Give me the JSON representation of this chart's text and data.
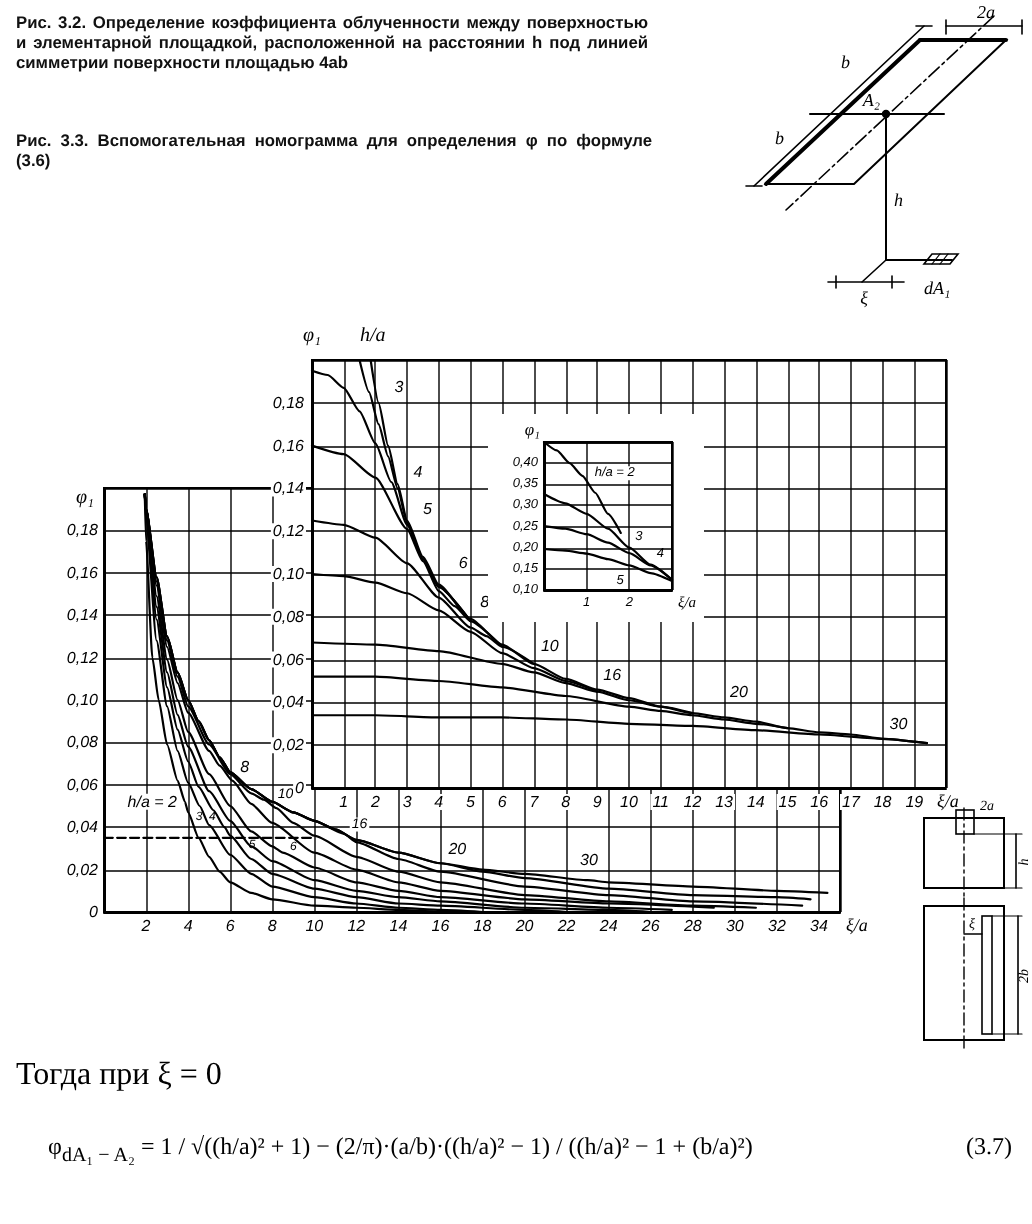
{
  "chart_data": [
    {
      "type": "other",
      "title": "Рис. 3.2. Определение коэффициента облученности между поверхностью и элементарной площадкой, расположенной на расстоянии h под линией симметрии поверхности площадью 4ab",
      "annotations": [
        "2a",
        "b",
        "b",
        "A₂",
        "h",
        "ξ",
        "dA₁"
      ]
    },
    {
      "type": "line",
      "title": "Рис. 3.3. Вспомогательная номограмма для определения φ по формуле (3.6)",
      "xlabel": "ξ/a",
      "ylabel": "φ₁",
      "xlim": [
        0,
        20
      ],
      "ylim": [
        0,
        0.2
      ],
      "xticks": [
        1,
        2,
        3,
        4,
        5,
        6,
        7,
        8,
        9,
        10,
        11,
        12,
        13,
        14,
        15,
        16,
        17,
        18,
        19
      ],
      "yticks": [
        0,
        {
          "value": 0.02,
          "label": "0,02"
        },
        {
          "value": 0.04,
          "label": "0,04"
        },
        {
          "value": 0.06,
          "label": "0,06"
        },
        {
          "value": 0.08,
          "label": "0,08"
        },
        {
          "value": 0.1,
          "label": "0,10"
        },
        {
          "value": 0.12,
          "label": "0,12"
        },
        {
          "value": 0.14,
          "label": "0,14"
        },
        {
          "value": 0.16,
          "label": "0,16"
        },
        {
          "value": 0.18,
          "label": "0,18"
        }
      ],
      "grid": true,
      "marker": "none",
      "series": [
        {
          "color": "#000000",
          "x": [
            1.85,
            2.1,
            2.4,
            2.7,
            3,
            3.5,
            4,
            5,
            6,
            7,
            8,
            9,
            10,
            11,
            12,
            13,
            14,
            15,
            16,
            17,
            18,
            19.4
          ],
          "values": [
            0.2,
            0.18,
            0.16,
            0.142,
            0.125,
            0.108,
            0.095,
            0.079,
            0.067,
            0.058,
            0.051,
            0.046,
            0.042,
            0.038,
            0.035,
            0.033,
            0.031,
            0.028,
            0.026,
            0.025,
            0.023,
            0.021
          ]
        },
        {
          "color": "#000000",
          "x": [
            1.5,
            1.8,
            2.1,
            2.4,
            2.7,
            3,
            3.5,
            4,
            5
          ],
          "values": [
            0.2,
            0.185,
            0.17,
            0.155,
            0.14,
            0.124,
            0.107,
            0.094,
            0.078
          ]
        },
        {
          "color": "#000000",
          "x": [
            0,
            0.5,
            1,
            1.5,
            2,
            2.5,
            3,
            3.5,
            4,
            5
          ],
          "values": [
            0.195,
            0.193,
            0.187,
            0.176,
            0.161,
            0.143,
            0.123,
            0.107,
            0.094,
            0.078
          ]
        },
        {
          "color": "#000000",
          "x": [
            0,
            1,
            2,
            3,
            3.5,
            4,
            4.5,
            5,
            6
          ],
          "values": [
            0.16,
            0.156,
            0.145,
            0.121,
            0.106,
            0.092,
            0.085,
            0.078,
            0.066
          ]
        },
        {
          "color": "#000000",
          "x": [
            0,
            1,
            2,
            3,
            4,
            5,
            5.5,
            6,
            7
          ],
          "values": [
            0.125,
            0.123,
            0.117,
            0.105,
            0.089,
            0.075,
            0.071,
            0.066,
            0.058
          ]
        },
        {
          "color": "#000000",
          "x": [
            0,
            1,
            2,
            3,
            4,
            5,
            6,
            7,
            8,
            9
          ],
          "values": [
            0.1,
            0.099,
            0.096,
            0.091,
            0.083,
            0.073,
            0.063,
            0.056,
            0.05,
            0.045
          ]
        },
        {
          "color": "#000000",
          "x": [
            0,
            2,
            4,
            6,
            7,
            8,
            9,
            10,
            11,
            12
          ],
          "values": [
            0.068,
            0.067,
            0.064,
            0.058,
            0.054,
            0.049,
            0.045,
            0.041,
            0.038,
            0.035
          ]
        },
        {
          "color": "#000000",
          "x": [
            0,
            2,
            4,
            6,
            8,
            10,
            11,
            12,
            13,
            14,
            15
          ],
          "values": [
            0.052,
            0.052,
            0.05,
            0.047,
            0.043,
            0.038,
            0.036,
            0.034,
            0.032,
            0.03,
            0.028
          ]
        },
        {
          "color": "#000000",
          "x": [
            0,
            2,
            4,
            6,
            8,
            10,
            12,
            14,
            16,
            18,
            19.4
          ],
          "values": [
            0.034,
            0.034,
            0.033,
            0.033,
            0.032,
            0.03,
            0.029,
            0.027,
            0.025,
            0.023,
            0.021
          ]
        }
      ],
      "annotations": [
        "h/a",
        {
          "text": "3",
          "x": 2.1,
          "y": 0.18
        },
        {
          "text": "4",
          "x": 2.7,
          "y": 0.14
        },
        {
          "text": "5",
          "x": 3,
          "y": 0.123
        },
        {
          "text": "6",
          "x": 4,
          "y": 0.092
        },
        {
          "text": "8",
          "x": 5.5,
          "y": 0.071
        },
        {
          "text": "10",
          "x": 7,
          "y": 0.056
        },
        {
          "text": "16",
          "x": 9,
          "y": 0.045
        },
        {
          "text": "20",
          "x": 13,
          "y": 0.032
        },
        {
          "text": "30",
          "x": 18,
          "y": 0.023
        }
      ]
    },
    {
      "type": "line",
      "xlabel": "ξ/a",
      "ylabel": "φ₁",
      "xlim": [
        0,
        3
      ],
      "ylim": [
        0.1,
        0.45
      ],
      "xticks": [
        1,
        2
      ],
      "yticks": [
        {
          "value": 0.1,
          "label": "0,10"
        },
        {
          "value": 0.15,
          "label": "0,15"
        },
        {
          "value": 0.2,
          "label": "0,20"
        },
        {
          "value": 0.25,
          "label": "0,25"
        },
        {
          "value": 0.3,
          "label": "0,30"
        },
        {
          "value": 0.35,
          "label": "0,35"
        },
        {
          "value": 0.4,
          "label": "0,40"
        }
      ],
      "grid": true,
      "marker": "none",
      "series": [
        {
          "color": "#000000",
          "x": [
            0,
            0.3,
            0.6,
            0.9,
            1.2,
            1.5,
            1.8
          ],
          "values": [
            0.45,
            0.43,
            0.4,
            0.37,
            0.33,
            0.28,
            0.235
          ]
        },
        {
          "color": "#000000",
          "x": [
            0,
            0.5,
            1,
            1.5,
            2,
            2.5,
            3
          ],
          "values": [
            0.327,
            0.305,
            0.28,
            0.245,
            0.2,
            0.16,
            0.124
          ]
        },
        {
          "color": "#000000",
          "x": [
            0,
            0.5,
            1,
            1.5,
            2,
            2.5,
            3
          ],
          "values": [
            0.251,
            0.245,
            0.232,
            0.212,
            0.187,
            0.158,
            0.124
          ]
        },
        {
          "color": "#000000",
          "x": [
            0,
            0.5,
            1,
            1.5,
            2,
            2.5,
            3
          ],
          "values": [
            0.197,
            0.193,
            0.186,
            0.173,
            0.158,
            0.14,
            0.121
          ]
        }
      ],
      "annotations": [
        {
          "text": "h/a = 2",
          "x": 1,
          "y": 0.355
        },
        {
          "text": "3",
          "x": 2,
          "y": 0.2
        },
        {
          "text": "4",
          "x": 2.5,
          "y": 0.158
        },
        {
          "text": "5",
          "x": 2.2,
          "y": 0.152
        }
      ]
    },
    {
      "type": "line",
      "xlabel": "ξ/a",
      "ylabel": "φ₁",
      "xlim": [
        0,
        35
      ],
      "ylim": [
        0,
        0.2
      ],
      "xticks": [
        2,
        4,
        6,
        8,
        10,
        12,
        14,
        16,
        18,
        20,
        22,
        24,
        26,
        28,
        30,
        32,
        34
      ],
      "yticks": [
        0,
        {
          "value": 0.02,
          "label": "0,02"
        },
        {
          "value": 0.04,
          "label": "0,04"
        },
        {
          "value": 0.06,
          "label": "0,06"
        },
        {
          "value": 0.08,
          "label": "0,08"
        },
        {
          "value": 0.1,
          "label": "0,10"
        },
        {
          "value": 0.12,
          "label": "0,12"
        },
        {
          "value": 0.14,
          "label": "0,14"
        },
        {
          "value": 0.16,
          "label": "0,16"
        },
        {
          "value": 0.18,
          "label": "0,18"
        }
      ],
      "grid": true,
      "marker": "none",
      "series": [
        {
          "color": "#000000",
          "x": [
            1.94,
            2,
            2.3,
            2.6,
            3,
            3.5,
            3.85,
            4,
            4.5,
            5,
            5.5,
            6,
            7,
            8,
            10,
            12,
            14,
            16
          ],
          "values": [
            0.197,
            0.175,
            0.12,
            0.1,
            0.079,
            0.062,
            0.052,
            0.047,
            0.035,
            0.026,
            0.019,
            0.014,
            0.009,
            0.006,
            0.003,
            0.002,
            0.001,
            0
          ]
        },
        {
          "color": "#000000",
          "x": [
            1.94,
            2,
            2.5,
            3,
            3.5,
            4,
            4.55,
            5,
            6,
            7,
            8,
            10,
            12,
            14,
            16,
            18
          ],
          "values": [
            0.197,
            0.185,
            0.128,
            0.097,
            0.076,
            0.061,
            0.05,
            0.041,
            0.027,
            0.018,
            0.012,
            0.007,
            0.004,
            0.002,
            0.001,
            0
          ]
        },
        {
          "color": "#000000",
          "x": [
            1.94,
            2,
            2.5,
            3,
            3.5,
            4,
            4.5,
            5.2,
            5.73,
            6,
            7,
            8,
            10,
            12,
            14,
            16,
            20,
            22
          ],
          "values": [
            0.197,
            0.188,
            0.138,
            0.106,
            0.086,
            0.071,
            0.059,
            0.048,
            0.04,
            0.036,
            0.025,
            0.018,
            0.011,
            0.007,
            0.004,
            0.003,
            0.001,
            0
          ]
        },
        {
          "color": "#000000",
          "x": [
            1.94,
            2,
            2.5,
            3,
            3.5,
            4,
            5,
            6,
            7,
            8,
            10,
            12,
            14,
            16,
            20,
            24,
            26
          ],
          "values": [
            0.197,
            0.189,
            0.144,
            0.113,
            0.093,
            0.078,
            0.057,
            0.043,
            0.031,
            0.024,
            0.015,
            0.01,
            0.007,
            0.005,
            0.002,
            0.001,
            0
          ]
        },
        {
          "color": "#000000",
          "x": [
            1.94,
            2,
            2.5,
            3,
            3.5,
            4,
            5,
            6,
            7,
            8,
            8.5,
            10,
            12,
            14,
            16,
            20,
            24,
            27
          ],
          "values": [
            0.197,
            0.19,
            0.149,
            0.119,
            0.1,
            0.085,
            0.065,
            0.05,
            0.038,
            0.031,
            0.028,
            0.021,
            0.014,
            0.01,
            0.007,
            0.004,
            0.002,
            0.001
          ]
        },
        {
          "color": "#000000",
          "x": [
            1.94,
            2,
            2.5,
            3,
            3.5,
            4,
            5,
            5.5,
            6.1,
            7,
            8,
            10,
            12,
            14,
            16,
            20,
            24,
            29
          ],
          "values": [
            0.197,
            0.19,
            0.154,
            0.125,
            0.108,
            0.094,
            0.076,
            0.069,
            0.062,
            0.051,
            0.042,
            0.028,
            0.02,
            0.014,
            0.01,
            0.006,
            0.004,
            0.002
          ]
        },
        {
          "color": "#000000",
          "x": [
            1.94,
            2,
            2.5,
            3,
            3.5,
            4,
            5,
            6,
            7,
            7.6,
            8.2,
            9,
            10,
            12,
            14,
            16,
            20,
            24,
            28,
            31
          ],
          "values": [
            0.197,
            0.19,
            0.156,
            0.128,
            0.111,
            0.097,
            0.079,
            0.065,
            0.056,
            0.053,
            0.049,
            0.042,
            0.036,
            0.026,
            0.019,
            0.014,
            0.008,
            0.005,
            0.003,
            0.002
          ]
        },
        {
          "color": "#000000",
          "x": [
            1.94,
            2,
            2.5,
            3,
            3.5,
            4,
            4.5,
            5,
            5.5,
            6,
            7,
            8,
            9,
            10,
            11.4,
            12,
            14,
            16,
            20,
            24,
            28,
            33.2
          ],
          "values": [
            0.197,
            0.19,
            0.158,
            0.13,
            0.113,
            0.1,
            0.09,
            0.081,
            0.073,
            0.066,
            0.058,
            0.052,
            0.047,
            0.043,
            0.037,
            0.033,
            0.025,
            0.019,
            0.012,
            0.008,
            0.005,
            0.003
          ]
        },
        {
          "color": "#000000",
          "x": [
            1.94,
            2,
            2.5,
            3,
            3.5,
            4,
            4.5,
            5,
            5.5,
            6,
            7,
            8,
            9,
            10,
            11,
            12,
            14,
            16,
            18,
            20,
            24,
            28,
            32,
            33.6
          ],
          "values": [
            0.197,
            0.19,
            0.158,
            0.13,
            0.113,
            0.1,
            0.09,
            0.081,
            0.073,
            0.066,
            0.058,
            0.052,
            0.047,
            0.043,
            0.039,
            0.034,
            0.028,
            0.023,
            0.019,
            0.016,
            0.011,
            0.008,
            0.007,
            0.006
          ]
        },
        {
          "color": "#000000",
          "x": [
            1.94,
            2,
            2.5,
            3,
            3.5,
            4,
            4.5,
            5,
            5.5,
            6,
            7,
            8,
            9,
            10,
            11,
            12,
            14,
            16,
            18,
            20,
            23,
            24,
            28,
            32,
            34.4
          ],
          "values": [
            0.197,
            0.19,
            0.158,
            0.13,
            0.113,
            0.1,
            0.09,
            0.081,
            0.073,
            0.066,
            0.058,
            0.052,
            0.047,
            0.043,
            0.039,
            0.034,
            0.028,
            0.023,
            0.02,
            0.018,
            0.015,
            0.014,
            0.012,
            0.01,
            0.009
          ]
        },
        {
          "color": "#000000",
          "x": [
            0,
            10
          ],
          "values": [
            0.035,
            0.035
          ],
          "line_style": "dashed"
        }
      ],
      "annotations": [
        {
          "text": "h/a = 2",
          "x": 3.85,
          "y": 0.052
        },
        {
          "text": "3",
          "x": 4.85,
          "y": 0.044
        },
        {
          "text": "4",
          "x": 5.45,
          "y": 0.044
        },
        {
          "text": "5",
          "x": 7.4,
          "y": 0.028
        },
        {
          "text": "6",
          "x": 9,
          "y": 0.026
        },
        {
          "text": "8",
          "x": 6.1,
          "y": 0.062
        },
        {
          "text": "10",
          "x": 7.6,
          "y": 0.053
        },
        {
          "text": "16",
          "x": 11.4,
          "y": 0.037
        },
        {
          "text": "20",
          "x": 16,
          "y": 0.023
        },
        {
          "text": "30",
          "x": 23,
          "y": 0.015
        }
      ]
    },
    {
      "type": "other",
      "annotations": [
        "2a",
        "h",
        "ξ",
        "2b"
      ]
    },
    {
      "type": "other",
      "annotations": [
        "Тогда при ξ = 0",
        "φ$_{dA₁ − A₂}$ = 1 / √((h/a)² + 1) − (2/π)·(a/b)·((h/a)² − 1) / ((h/a)² − 1 + (b/a)²)",
        "(3.7)"
      ]
    }
  ]
}
